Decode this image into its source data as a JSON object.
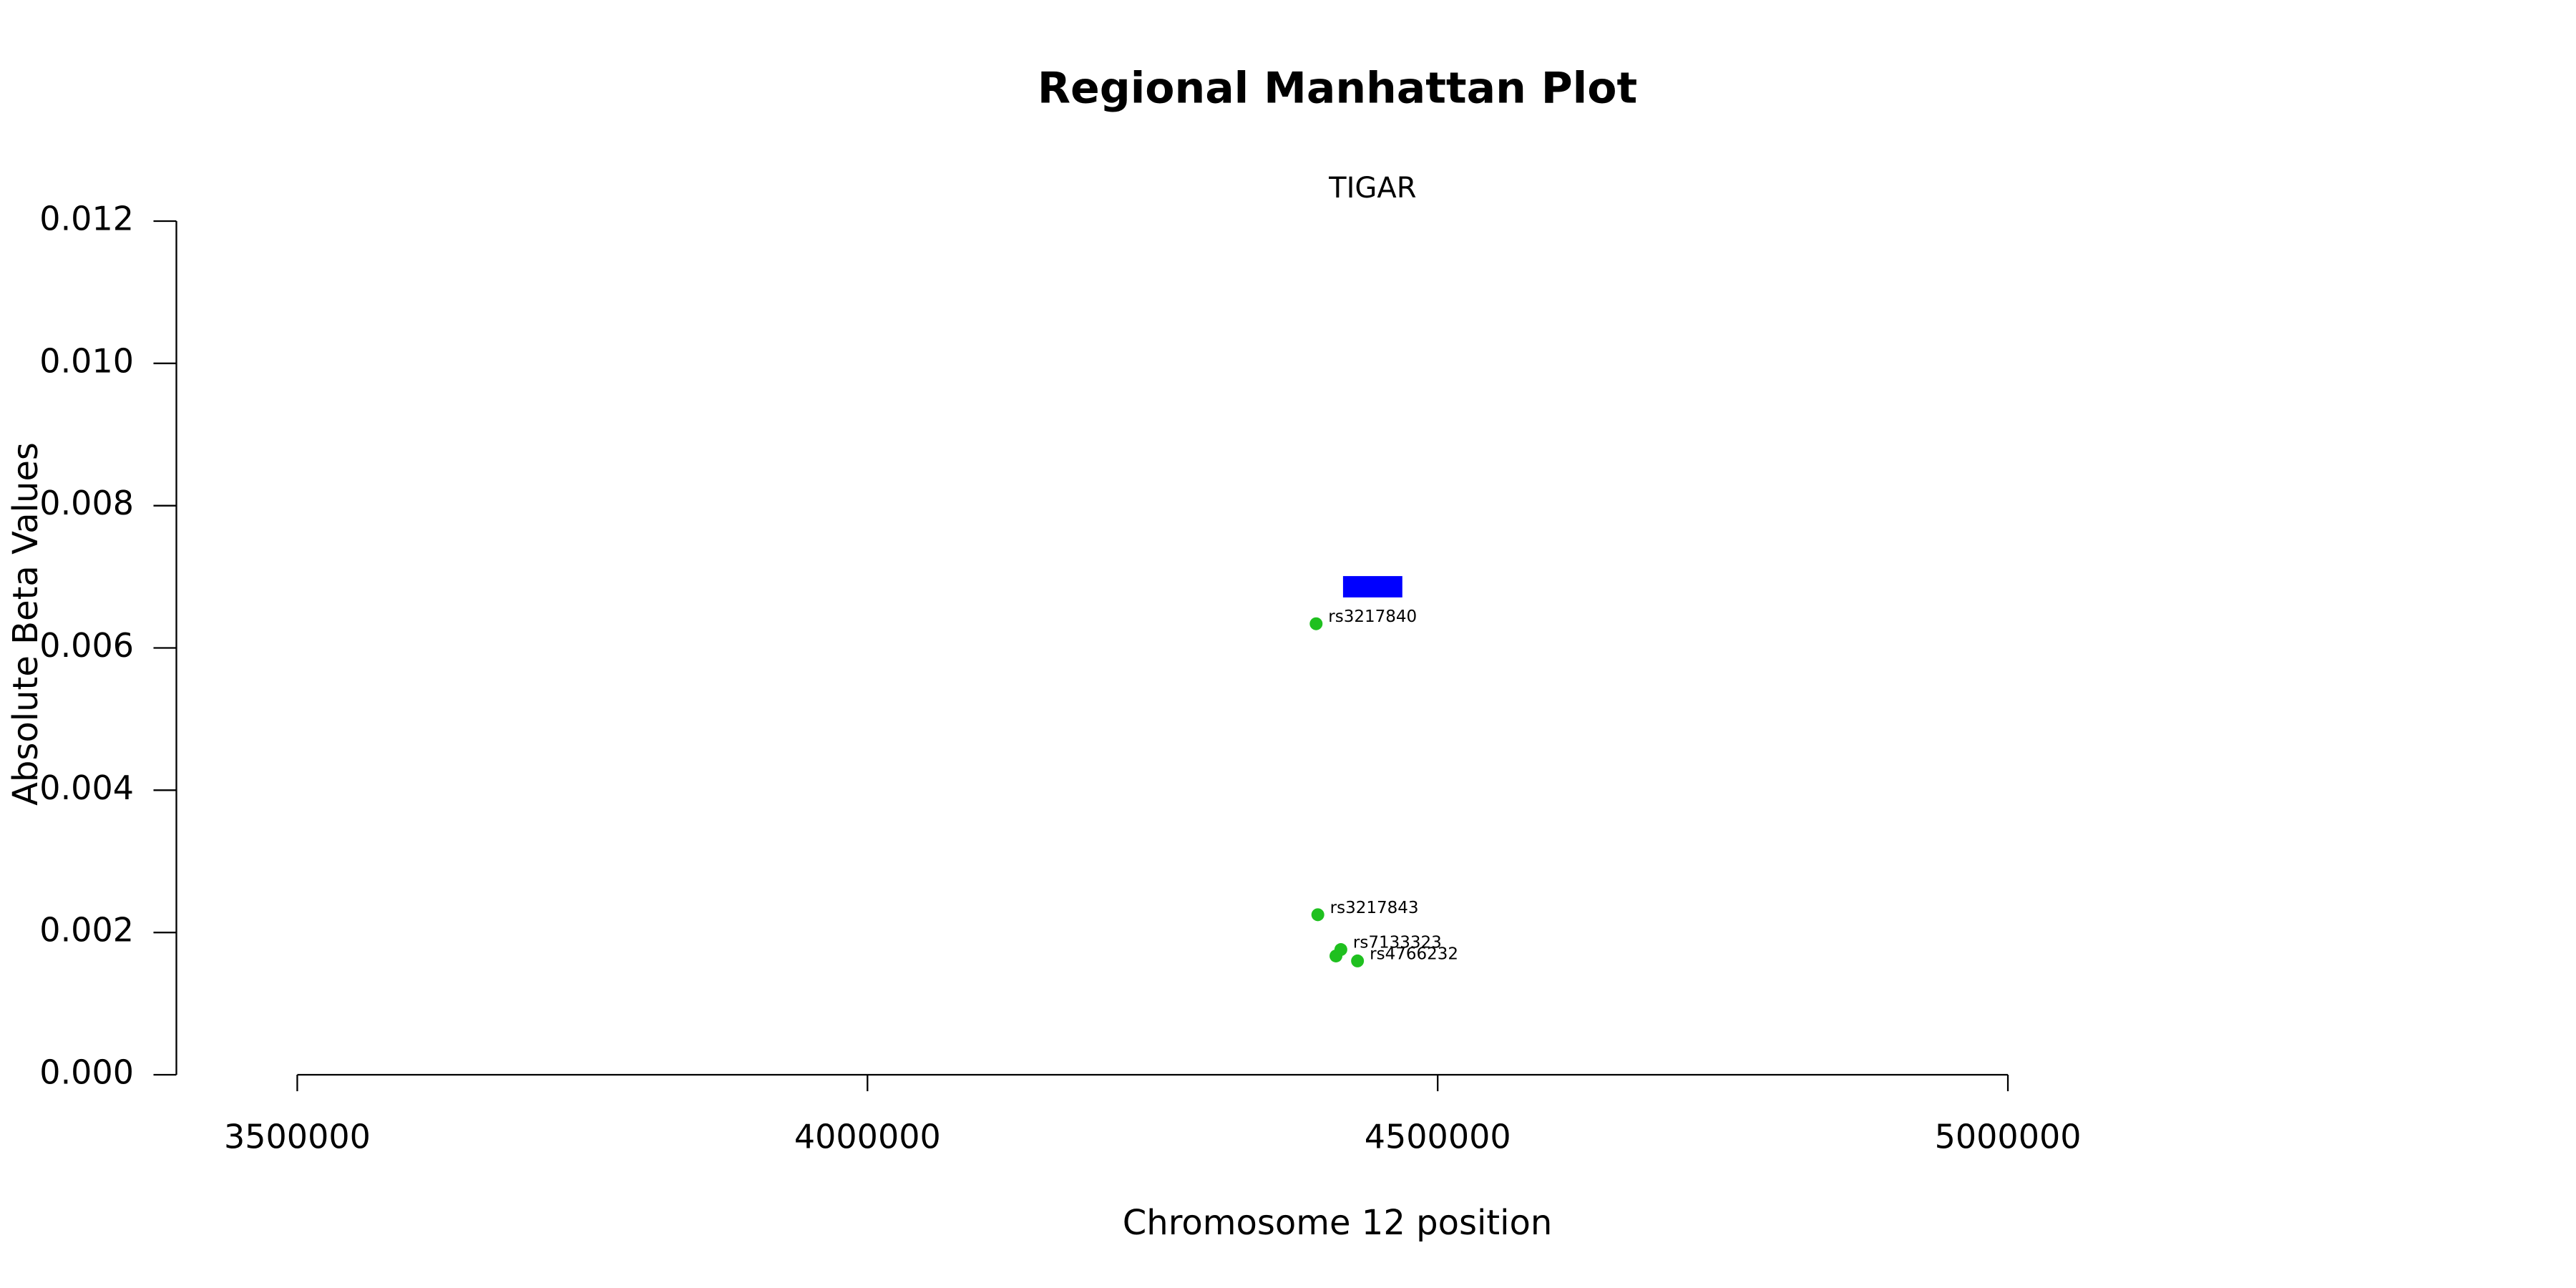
{
  "chart_data": {
    "type": "scatter",
    "title": "Regional Manhattan Plot",
    "xlabel": "Chromosome 12 position",
    "ylabel": "Absolute Beta Values",
    "x": [
      4393400,
      4394900,
      4410800,
      4415100,
      4429700
    ],
    "values": [
      0.00634,
      0.00225,
      0.00167,
      0.00176,
      0.0016
    ],
    "labels": [
      "rs3217840",
      "rs3217843",
      null,
      "rs7133323",
      "rs4766232"
    ],
    "color": "#1fc01f",
    "gene": {
      "name": "TIGAR",
      "start": 4417000,
      "end": 4469000,
      "ymin": 0.00671,
      "ymax": 0.00701,
      "color": "#0000ff"
    },
    "xlim": [
      3394000,
      5106000
    ],
    "xticks": [
      3500000,
      4000000,
      4500000,
      5000000
    ],
    "ylim": [
      0,
      0.012
    ],
    "yticks": [
      {
        "value": 0,
        "label": "0.000"
      },
      {
        "value": 0.002,
        "label": "0.002"
      },
      {
        "value": 0.004,
        "label": "0.004"
      },
      {
        "value": 0.006,
        "label": "0.006"
      },
      {
        "value": 0.008,
        "label": "0.008"
      },
      {
        "value": 0.01,
        "label": "0.010"
      },
      {
        "value": 0.012,
        "label": "0.012"
      }
    ]
  }
}
